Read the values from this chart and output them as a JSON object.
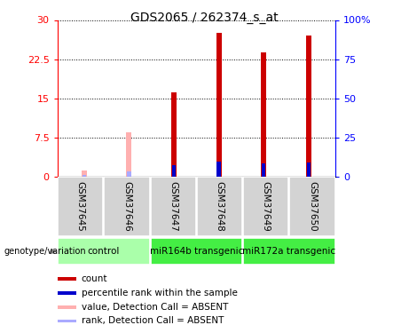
{
  "title": "GDS2065 / 262374_s_at",
  "samples": [
    "GSM37645",
    "GSM37646",
    "GSM37647",
    "GSM37648",
    "GSM37649",
    "GSM37650"
  ],
  "count_values": [
    1.2,
    8.5,
    16.2,
    27.5,
    23.8,
    27.0
  ],
  "rank_values": [
    1.2,
    3.5,
    7.5,
    9.3,
    8.5,
    9.0
  ],
  "detection_absent": [
    true,
    true,
    false,
    false,
    false,
    false
  ],
  "ylim_left": [
    0,
    30
  ],
  "ylim_right": [
    0,
    100
  ],
  "yticks_left": [
    0,
    7.5,
    15,
    22.5,
    30
  ],
  "yticks_right": [
    0,
    25,
    50,
    75,
    100
  ],
  "yticklabels_left": [
    "0",
    "7.5",
    "15",
    "22.5",
    "30"
  ],
  "yticklabels_right": [
    "0",
    "25",
    "50",
    "75",
    "100%"
  ],
  "bar_width": 0.12,
  "red_color": "#CC0000",
  "pink_color": "#FFB0B0",
  "blue_color": "#0000CC",
  "lightblue_color": "#AAAAFF",
  "title_fontsize": 10,
  "group_configs": [
    {
      "label": "control",
      "start": 0,
      "end": 2,
      "color": "#AAFFAA"
    },
    {
      "label": "miR164b transgenic",
      "start": 2,
      "end": 4,
      "color": "#44EE44"
    },
    {
      "label": "miR172a transgenic",
      "start": 4,
      "end": 6,
      "color": "#44EE44"
    }
  ]
}
